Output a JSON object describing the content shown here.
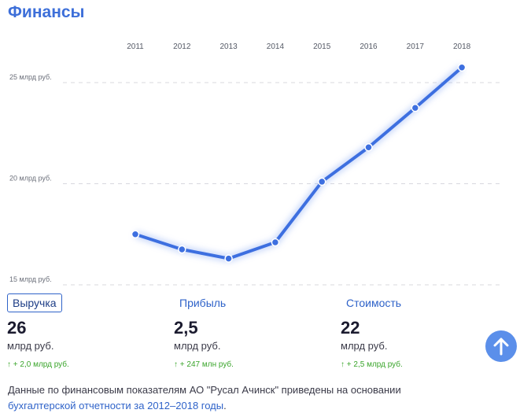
{
  "header": {
    "title": "Финансы"
  },
  "chart_data": {
    "type": "line",
    "x": [
      "2011",
      "2012",
      "2013",
      "2014",
      "2015",
      "2016",
      "2017",
      "2018"
    ],
    "series": [
      {
        "values": [
          17.5,
          16.75,
          16.3,
          17.1,
          20.1,
          21.8,
          23.75,
          25.75
        ]
      }
    ],
    "ylim": [
      15,
      25
    ],
    "yticks": [
      {
        "value": 15,
        "label": "15 млрд руб."
      },
      {
        "value": 20,
        "label": "20 млрд руб."
      },
      {
        "value": 25,
        "label": "25 млрд руб."
      }
    ],
    "grid": true,
    "line_color": "#3d6fe0"
  },
  "metrics": [
    {
      "label": "Выручка",
      "value": "26",
      "unit": "млрд руб.",
      "delta": "↑ + 2,0 млрд руб."
    },
    {
      "label": "Прибыль",
      "value": "2,5",
      "unit": "млрд руб.",
      "delta": "↑ + 247 млн руб."
    },
    {
      "label": "Стоимость",
      "value": "22",
      "unit": "млрд руб.",
      "delta": "↑ + 2,5 млрд руб."
    }
  ],
  "footer": {
    "text": "Данные по финансовым показателям АО \"Русал Ачинск\" приведены на основании",
    "link": "бухгалтерской отчетности за 2012–2018 годы",
    "suffix": "."
  },
  "colors": {
    "accent": "#3d6fd9",
    "positive": "#3aa52b",
    "button": "#5b8fea"
  },
  "icons": {
    "scroll_up": "arrow-up-icon"
  }
}
